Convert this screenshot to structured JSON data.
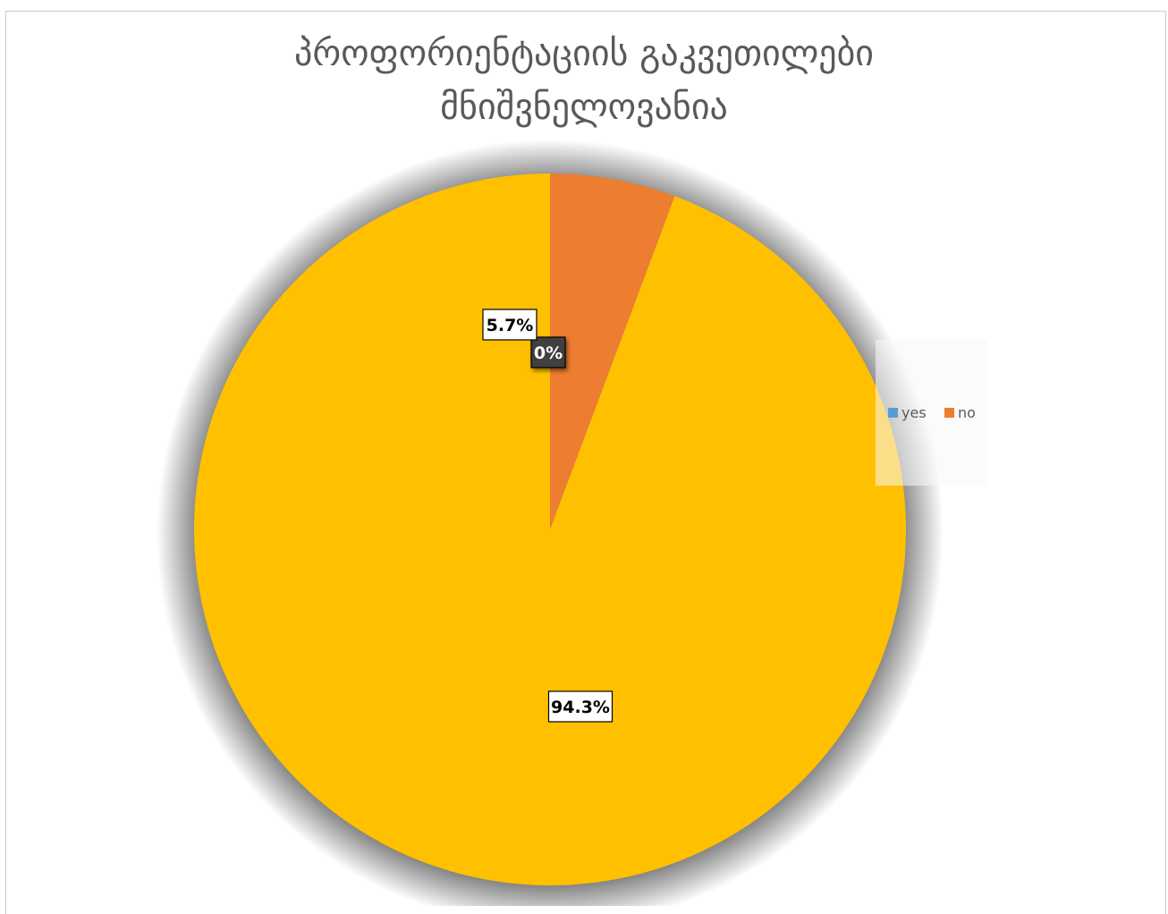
{
  "chart_data": {
    "type": "pie",
    "title_lines": [
      "პროფორიენტაციის გაკვეთილები",
      "მნიშვნელოვანია"
    ],
    "series": [
      {
        "categories": [
          "yes",
          "no",
          ""
        ],
        "values": [
          0,
          5.7,
          94.3
        ],
        "labels": [
          "0%",
          "5.7%",
          "94.3%"
        ]
      }
    ],
    "colors": {
      "yes": "#5B9BD5",
      "no": "#ED7D31",
      "other": "#FFC000"
    },
    "legend": {
      "position": "right",
      "entries": [
        "yes",
        "no"
      ]
    }
  }
}
